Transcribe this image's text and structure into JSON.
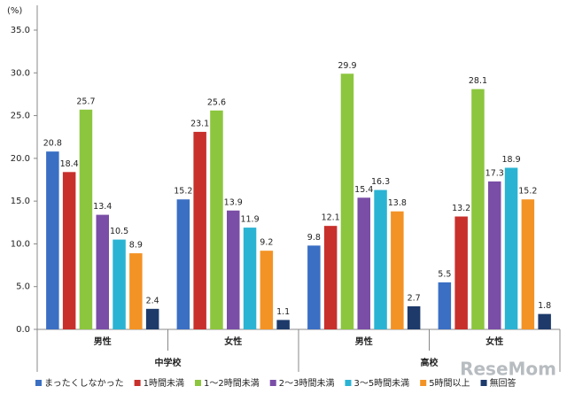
{
  "chart_data": {
    "type": "bar",
    "y_unit": "(%)",
    "categories": [
      "男性",
      "女性",
      "男性",
      "女性"
    ],
    "groups": [
      "中学校",
      "高校"
    ],
    "series": [
      {
        "name": "まったくしなかった",
        "color": "#3a6fc4",
        "values": [
          20.8,
          15.2,
          9.8,
          5.5
        ]
      },
      {
        "name": "1時間未満",
        "color": "#c8302c",
        "values": [
          18.4,
          23.1,
          12.1,
          13.2
        ]
      },
      {
        "name": "1～2時間未満",
        "color": "#8cc63e",
        "values": [
          25.7,
          25.6,
          29.9,
          28.1
        ]
      },
      {
        "name": "2～3時間未満",
        "color": "#7a4ea6",
        "values": [
          13.4,
          13.9,
          15.4,
          17.3
        ]
      },
      {
        "name": "3～5時間未満",
        "color": "#2bb3d3",
        "values": [
          10.5,
          11.9,
          16.3,
          18.9
        ]
      },
      {
        "name": "5時間以上",
        "color": "#f39325",
        "values": [
          8.9,
          9.2,
          13.8,
          15.2
        ]
      },
      {
        "name": "無回答",
        "color": "#1d3a6b",
        "values": [
          2.4,
          1.1,
          2.7,
          1.8
        ]
      }
    ],
    "ylim": [
      0,
      35
    ],
    "yticks": [
      {
        "value": 0,
        "label": "0.0"
      },
      {
        "value": 5,
        "label": "5.0"
      },
      {
        "value": 10,
        "label": "10.0"
      },
      {
        "value": 15,
        "label": "15.0"
      },
      {
        "value": 20,
        "label": "20.0"
      },
      {
        "value": 25,
        "label": "25.0"
      },
      {
        "value": 30,
        "label": "30.0"
      },
      {
        "value": 35,
        "label": "35.0"
      }
    ],
    "grid": false,
    "legend": "bottom",
    "watermark": "ReseMom"
  }
}
